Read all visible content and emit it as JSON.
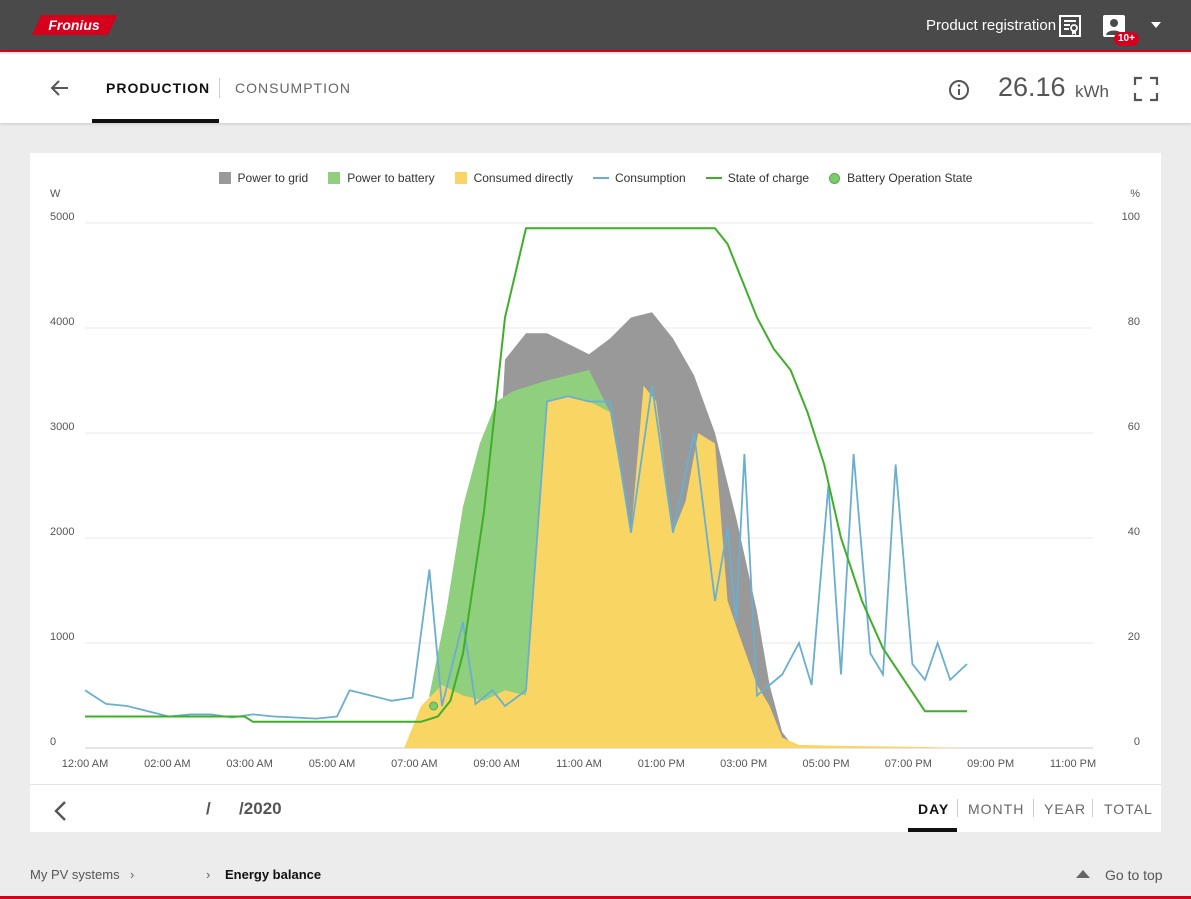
{
  "topbar": {
    "logo_text": "Fronius",
    "registration_label": "Product registration",
    "registration_icon": "certificate-icon",
    "user_icon": "user-icon",
    "notification_badge": "10+",
    "brand_color": "#d6001c"
  },
  "header": {
    "tabs": [
      {
        "label": "PRODUCTION",
        "active": true
      },
      {
        "label": "CONSUMPTION",
        "active": false
      }
    ],
    "energy_value": "26.16",
    "energy_unit": "kWh"
  },
  "period": {
    "date": "/      /2020",
    "options": [
      "DAY",
      "MONTH",
      "YEAR",
      "TOTAL"
    ],
    "selected": "DAY"
  },
  "breadcrumb": {
    "items": [
      "My PV systems",
      "Energy balance"
    ]
  },
  "go_top_label": "Go to top",
  "chart_data": {
    "type": "area",
    "y_left_unit": "W",
    "y_right_unit": "%",
    "ylim": [
      0,
      5000
    ],
    "ylim_right": [
      0,
      100
    ],
    "y_ticks": [
      "0",
      "1000",
      "2000",
      "3000",
      "4000",
      "5000"
    ],
    "y_right_ticks": [
      "0",
      "20",
      "40",
      "60",
      "80",
      "100"
    ],
    "x_ticks": [
      "12:00 AM",
      "02:00 AM",
      "03:00 AM",
      "05:00 AM",
      "07:00 AM",
      "09:00 AM",
      "11:00 AM",
      "01:00 PM",
      "03:00 PM",
      "05:00 PM",
      "07:00 PM",
      "09:00 PM",
      "11:00 PM"
    ],
    "legend_position": "top-center",
    "grid": true,
    "series": [
      {
        "name": "Power to grid",
        "kind": "area",
        "color": "#999999",
        "x": [
          9.5,
          10.0,
          10.5,
          11.0,
          11.5,
          12.0,
          12.5,
          13.0,
          13.5,
          14.0,
          14.5,
          15.0,
          15.5,
          16.0,
          16.3,
          16.6,
          16.9
        ],
        "values": [
          0,
          3700,
          3950,
          3950,
          3850,
          3750,
          3900,
          4100,
          4150,
          3900,
          3550,
          3000,
          2200,
          1300,
          600,
          150,
          0
        ]
      },
      {
        "name": "Power to battery",
        "kind": "area",
        "color": "#90cf7e",
        "x": [
          8.2,
          8.6,
          9.0,
          9.4,
          9.8,
          10.2,
          10.6,
          11.0,
          11.5,
          12.0,
          12.5,
          13.0
        ],
        "values": [
          500,
          1300,
          2300,
          2900,
          3300,
          3400,
          3450,
          3500,
          3550,
          3600,
          3200,
          0
        ]
      },
      {
        "name": "Consumed directly",
        "kind": "area",
        "color": "#f9d664",
        "x": [
          0,
          7.6,
          7.8,
          8.0,
          8.5,
          9.0,
          9.5,
          10.0,
          10.5,
          11.0,
          11.5,
          12.0,
          12.5,
          13.0,
          13.3,
          13.6,
          14.0,
          14.3,
          14.6,
          15.0,
          15.3,
          15.6,
          16.0,
          16.3,
          16.6,
          17.0,
          18.0,
          20.0,
          21.0
        ],
        "values": [
          0,
          0,
          200,
          400,
          600,
          500,
          450,
          550,
          500,
          3300,
          3350,
          3300,
          3200,
          2050,
          3450,
          3300,
          2050,
          2350,
          3000,
          2900,
          1400,
          1050,
          600,
          400,
          100,
          30,
          20,
          10,
          0
        ]
      },
      {
        "name": "Consumption",
        "kind": "line",
        "color": "#6aafcf",
        "x": [
          0,
          0.5,
          1.0,
          1.5,
          2.0,
          2.5,
          3.0,
          3.5,
          4.0,
          4.5,
          5.0,
          5.5,
          6.0,
          6.3,
          6.8,
          7.3,
          7.8,
          8.2,
          8.5,
          9.0,
          9.3,
          9.7,
          10.0,
          10.5,
          11.0,
          11.5,
          12.0,
          12.5,
          13.0,
          13.5,
          14.0,
          14.5,
          15.0,
          15.3,
          15.5,
          15.7,
          16.0,
          16.3,
          16.6,
          17.0,
          17.3,
          17.7,
          18.0,
          18.3,
          18.7,
          19.0,
          19.3,
          19.7,
          20.0,
          20.3,
          20.6,
          21.0
        ],
        "values": [
          550,
          420,
          400,
          350,
          300,
          320,
          320,
          290,
          320,
          300,
          290,
          280,
          300,
          550,
          500,
          450,
          480,
          1700,
          400,
          1200,
          420,
          550,
          400,
          550,
          3300,
          3350,
          3300,
          3300,
          2050,
          3450,
          2050,
          3000,
          1400,
          2100,
          1200,
          2800,
          500,
          600,
          700,
          1000,
          600,
          2500,
          700,
          2800,
          900,
          700,
          2700,
          800,
          650,
          1000,
          650,
          800
        ]
      },
      {
        "name": "State of charge",
        "kind": "line",
        "color": "#3fae29",
        "axis": "right",
        "x": [
          0,
          3.8,
          4.0,
          8.0,
          8.4,
          8.7,
          9.0,
          9.5,
          10.0,
          10.5,
          11.0,
          12.0,
          13.0,
          14.0,
          15.0,
          15.3,
          15.6,
          16.0,
          16.4,
          16.8,
          17.2,
          17.6,
          18.0,
          18.5,
          19.0,
          19.5,
          20.0,
          21.0
        ],
        "values": [
          6,
          6,
          5,
          5,
          6,
          9,
          18,
          45,
          82,
          99,
          99,
          99,
          99,
          99,
          99,
          96,
          90,
          82,
          76,
          72,
          64,
          54,
          40,
          28,
          19,
          13,
          7,
          7
        ]
      },
      {
        "name": "Battery Operation State",
        "kind": "marker",
        "color": "#7ecb6c",
        "x": [
          8.3
        ],
        "values": [
          400
        ]
      }
    ]
  }
}
